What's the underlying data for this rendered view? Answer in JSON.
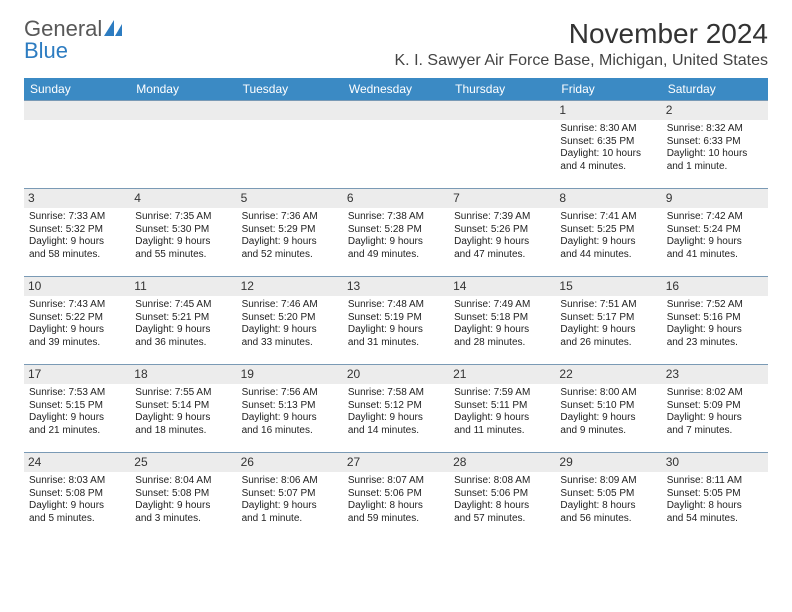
{
  "logo": {
    "text1": "General",
    "text2": "Blue"
  },
  "title": "November 2024",
  "location": "K. I. Sawyer Air Force Base, Michigan, United States",
  "colors": {
    "header_bg": "#3b8ac4",
    "header_text": "#ffffff",
    "daynum_bg": "#ececec",
    "border": "#7a9ab5",
    "logo_blue": "#2d7cc1",
    "logo_gray": "#585858"
  },
  "day_headers": [
    "Sunday",
    "Monday",
    "Tuesday",
    "Wednesday",
    "Thursday",
    "Friday",
    "Saturday"
  ],
  "weeks": [
    [
      null,
      null,
      null,
      null,
      null,
      {
        "n": "1",
        "sr": "Sunrise: 8:30 AM",
        "ss": "Sunset: 6:35 PM",
        "dl1": "Daylight: 10 hours",
        "dl2": "and 4 minutes."
      },
      {
        "n": "2",
        "sr": "Sunrise: 8:32 AM",
        "ss": "Sunset: 6:33 PM",
        "dl1": "Daylight: 10 hours",
        "dl2": "and 1 minute."
      }
    ],
    [
      {
        "n": "3",
        "sr": "Sunrise: 7:33 AM",
        "ss": "Sunset: 5:32 PM",
        "dl1": "Daylight: 9 hours",
        "dl2": "and 58 minutes."
      },
      {
        "n": "4",
        "sr": "Sunrise: 7:35 AM",
        "ss": "Sunset: 5:30 PM",
        "dl1": "Daylight: 9 hours",
        "dl2": "and 55 minutes."
      },
      {
        "n": "5",
        "sr": "Sunrise: 7:36 AM",
        "ss": "Sunset: 5:29 PM",
        "dl1": "Daylight: 9 hours",
        "dl2": "and 52 minutes."
      },
      {
        "n": "6",
        "sr": "Sunrise: 7:38 AM",
        "ss": "Sunset: 5:28 PM",
        "dl1": "Daylight: 9 hours",
        "dl2": "and 49 minutes."
      },
      {
        "n": "7",
        "sr": "Sunrise: 7:39 AM",
        "ss": "Sunset: 5:26 PM",
        "dl1": "Daylight: 9 hours",
        "dl2": "and 47 minutes."
      },
      {
        "n": "8",
        "sr": "Sunrise: 7:41 AM",
        "ss": "Sunset: 5:25 PM",
        "dl1": "Daylight: 9 hours",
        "dl2": "and 44 minutes."
      },
      {
        "n": "9",
        "sr": "Sunrise: 7:42 AM",
        "ss": "Sunset: 5:24 PM",
        "dl1": "Daylight: 9 hours",
        "dl2": "and 41 minutes."
      }
    ],
    [
      {
        "n": "10",
        "sr": "Sunrise: 7:43 AM",
        "ss": "Sunset: 5:22 PM",
        "dl1": "Daylight: 9 hours",
        "dl2": "and 39 minutes."
      },
      {
        "n": "11",
        "sr": "Sunrise: 7:45 AM",
        "ss": "Sunset: 5:21 PM",
        "dl1": "Daylight: 9 hours",
        "dl2": "and 36 minutes."
      },
      {
        "n": "12",
        "sr": "Sunrise: 7:46 AM",
        "ss": "Sunset: 5:20 PM",
        "dl1": "Daylight: 9 hours",
        "dl2": "and 33 minutes."
      },
      {
        "n": "13",
        "sr": "Sunrise: 7:48 AM",
        "ss": "Sunset: 5:19 PM",
        "dl1": "Daylight: 9 hours",
        "dl2": "and 31 minutes."
      },
      {
        "n": "14",
        "sr": "Sunrise: 7:49 AM",
        "ss": "Sunset: 5:18 PM",
        "dl1": "Daylight: 9 hours",
        "dl2": "and 28 minutes."
      },
      {
        "n": "15",
        "sr": "Sunrise: 7:51 AM",
        "ss": "Sunset: 5:17 PM",
        "dl1": "Daylight: 9 hours",
        "dl2": "and 26 minutes."
      },
      {
        "n": "16",
        "sr": "Sunrise: 7:52 AM",
        "ss": "Sunset: 5:16 PM",
        "dl1": "Daylight: 9 hours",
        "dl2": "and 23 minutes."
      }
    ],
    [
      {
        "n": "17",
        "sr": "Sunrise: 7:53 AM",
        "ss": "Sunset: 5:15 PM",
        "dl1": "Daylight: 9 hours",
        "dl2": "and 21 minutes."
      },
      {
        "n": "18",
        "sr": "Sunrise: 7:55 AM",
        "ss": "Sunset: 5:14 PM",
        "dl1": "Daylight: 9 hours",
        "dl2": "and 18 minutes."
      },
      {
        "n": "19",
        "sr": "Sunrise: 7:56 AM",
        "ss": "Sunset: 5:13 PM",
        "dl1": "Daylight: 9 hours",
        "dl2": "and 16 minutes."
      },
      {
        "n": "20",
        "sr": "Sunrise: 7:58 AM",
        "ss": "Sunset: 5:12 PM",
        "dl1": "Daylight: 9 hours",
        "dl2": "and 14 minutes."
      },
      {
        "n": "21",
        "sr": "Sunrise: 7:59 AM",
        "ss": "Sunset: 5:11 PM",
        "dl1": "Daylight: 9 hours",
        "dl2": "and 11 minutes."
      },
      {
        "n": "22",
        "sr": "Sunrise: 8:00 AM",
        "ss": "Sunset: 5:10 PM",
        "dl1": "Daylight: 9 hours",
        "dl2": "and 9 minutes."
      },
      {
        "n": "23",
        "sr": "Sunrise: 8:02 AM",
        "ss": "Sunset: 5:09 PM",
        "dl1": "Daylight: 9 hours",
        "dl2": "and 7 minutes."
      }
    ],
    [
      {
        "n": "24",
        "sr": "Sunrise: 8:03 AM",
        "ss": "Sunset: 5:08 PM",
        "dl1": "Daylight: 9 hours",
        "dl2": "and 5 minutes."
      },
      {
        "n": "25",
        "sr": "Sunrise: 8:04 AM",
        "ss": "Sunset: 5:08 PM",
        "dl1": "Daylight: 9 hours",
        "dl2": "and 3 minutes."
      },
      {
        "n": "26",
        "sr": "Sunrise: 8:06 AM",
        "ss": "Sunset: 5:07 PM",
        "dl1": "Daylight: 9 hours",
        "dl2": "and 1 minute."
      },
      {
        "n": "27",
        "sr": "Sunrise: 8:07 AM",
        "ss": "Sunset: 5:06 PM",
        "dl1": "Daylight: 8 hours",
        "dl2": "and 59 minutes."
      },
      {
        "n": "28",
        "sr": "Sunrise: 8:08 AM",
        "ss": "Sunset: 5:06 PM",
        "dl1": "Daylight: 8 hours",
        "dl2": "and 57 minutes."
      },
      {
        "n": "29",
        "sr": "Sunrise: 8:09 AM",
        "ss": "Sunset: 5:05 PM",
        "dl1": "Daylight: 8 hours",
        "dl2": "and 56 minutes."
      },
      {
        "n": "30",
        "sr": "Sunrise: 8:11 AM",
        "ss": "Sunset: 5:05 PM",
        "dl1": "Daylight: 8 hours",
        "dl2": "and 54 minutes."
      }
    ]
  ]
}
